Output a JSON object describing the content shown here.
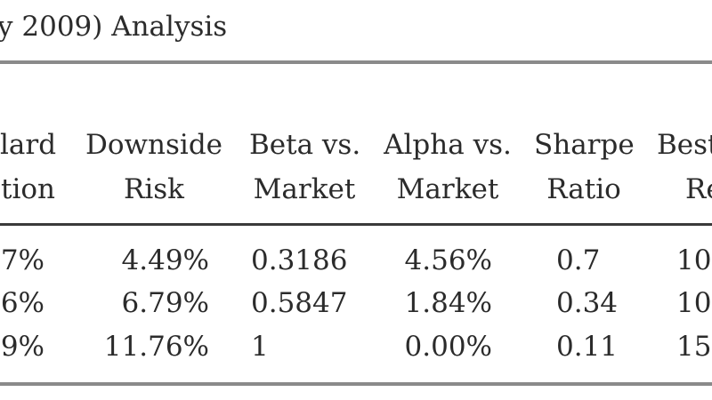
{
  "title": "y 2009) Analysis",
  "headers": [
    {
      "line1": "lard",
      "line2": "tion"
    },
    {
      "line1": "Downside",
      "line2": "Risk"
    },
    {
      "line1": "Beta vs.",
      "line2": "Market"
    },
    {
      "line1": "Alpha vs.",
      "line2": "Market"
    },
    {
      "line1": "Sharpe",
      "line2": "Ratio"
    },
    {
      "line1": "Best",
      "line2": "Re"
    }
  ],
  "rows": [
    [
      "7%",
      "4.49%",
      "0.3186",
      "4.56%",
      "0.7",
      "10"
    ],
    [
      "6%",
      "6.79%",
      "0.5847",
      "1.84%",
      "0.34",
      "10"
    ],
    [
      "9%",
      "11.76%",
      "1",
      "0.00%",
      "0.11",
      "15"
    ]
  ]
}
